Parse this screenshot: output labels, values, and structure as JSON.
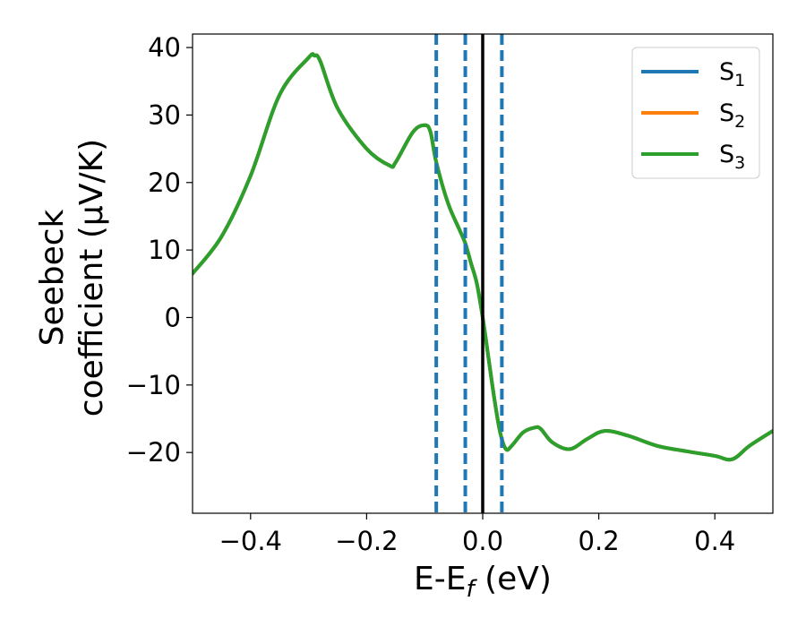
{
  "chart_data": {
    "type": "line",
    "xlabel": {
      "main": "E-E",
      "sub": "f",
      "tail": " (eV)"
    },
    "ylabel": {
      "line1": "Seebeck",
      "line2": "coefficient  (μV/K)"
    },
    "xlim": [
      -0.5,
      0.5
    ],
    "ylim": [
      -29,
      42
    ],
    "xticks": [
      -0.4,
      -0.2,
      0.0,
      0.2,
      0.4
    ],
    "xtick_labels": [
      "−0.4",
      "−0.2",
      "0.0",
      "0.2",
      "0.4"
    ],
    "yticks": [
      -20,
      -10,
      0,
      10,
      20,
      30,
      40
    ],
    "ytick_labels": [
      "−20",
      "−10",
      "0",
      "10",
      "20",
      "30",
      "40"
    ],
    "grid": false,
    "legend_position": "top-right",
    "series": [
      {
        "name": "S",
        "sub": "1",
        "color": "#1f77b4",
        "x": [
          -0.5,
          -0.45,
          -0.4,
          -0.35,
          -0.3,
          -0.29,
          -0.28,
          -0.25,
          -0.2,
          -0.16,
          -0.15,
          -0.12,
          -0.1,
          -0.09,
          -0.08,
          -0.06,
          -0.04,
          -0.03,
          -0.02,
          -0.01,
          0.0,
          0.01,
          0.02,
          0.03,
          0.04,
          0.05,
          0.07,
          0.09,
          0.1,
          0.12,
          0.15,
          0.18,
          0.21,
          0.25,
          0.3,
          0.35,
          0.4,
          0.43,
          0.46,
          0.5
        ],
        "y": [
          6.5,
          12,
          21,
          33,
          38.5,
          38.8,
          38,
          31,
          25,
          22.5,
          23,
          27.5,
          28.5,
          27.5,
          23,
          17,
          13,
          11,
          8,
          5,
          0,
          -6,
          -12,
          -17,
          -19.5,
          -19,
          -17,
          -16.3,
          -16.5,
          -18.5,
          -19.5,
          -18,
          -16.8,
          -17.5,
          -19,
          -19.8,
          -20.5,
          -21,
          -19,
          -16.8
        ]
      },
      {
        "name": "S",
        "sub": "2",
        "color": "#ff7f0e",
        "x": [
          -0.5,
          -0.45,
          -0.4,
          -0.35,
          -0.3,
          -0.29,
          -0.28,
          -0.25,
          -0.2,
          -0.16,
          -0.15,
          -0.12,
          -0.1,
          -0.09,
          -0.08,
          -0.06,
          -0.04,
          -0.03,
          -0.02,
          -0.01,
          0.0,
          0.01,
          0.02,
          0.03,
          0.04,
          0.05,
          0.07,
          0.09,
          0.1,
          0.12,
          0.15,
          0.18,
          0.21,
          0.25,
          0.3,
          0.35,
          0.4,
          0.43,
          0.46,
          0.5
        ],
        "y": [
          6.5,
          12,
          21,
          33,
          38.5,
          38.8,
          38,
          31,
          25,
          22.5,
          23,
          27.5,
          28.5,
          27.5,
          23,
          17,
          13,
          11,
          8,
          5,
          0,
          -6,
          -12,
          -17,
          -19.5,
          -19,
          -17,
          -16.3,
          -16.5,
          -18.5,
          -19.5,
          -18,
          -16.8,
          -17.5,
          -19,
          -19.8,
          -20.5,
          -21,
          -19,
          -16.8
        ]
      },
      {
        "name": "S",
        "sub": "3",
        "color": "#2ca02c",
        "x": [
          -0.5,
          -0.45,
          -0.4,
          -0.35,
          -0.3,
          -0.29,
          -0.28,
          -0.25,
          -0.2,
          -0.16,
          -0.15,
          -0.12,
          -0.1,
          -0.09,
          -0.08,
          -0.06,
          -0.04,
          -0.03,
          -0.02,
          -0.01,
          0.0,
          0.01,
          0.02,
          0.03,
          0.04,
          0.05,
          0.07,
          0.09,
          0.1,
          0.12,
          0.15,
          0.18,
          0.21,
          0.25,
          0.3,
          0.35,
          0.4,
          0.43,
          0.46,
          0.5
        ],
        "y": [
          6.5,
          12,
          21,
          33,
          38.5,
          38.8,
          38,
          31,
          25,
          22.5,
          23,
          27.5,
          28.5,
          27.5,
          23,
          17,
          13,
          11,
          8,
          5,
          0,
          -6,
          -12,
          -17,
          -19.5,
          -19,
          -17,
          -16.3,
          -16.5,
          -18.5,
          -19.5,
          -18,
          -16.8,
          -17.5,
          -19,
          -19.8,
          -20.5,
          -21,
          -19,
          -16.8
        ]
      }
    ],
    "vertical_lines": [
      {
        "x": -0.08,
        "style": "dashed",
        "color": "#1f77b4"
      },
      {
        "x": -0.03,
        "style": "dashed",
        "color": "#1f77b4"
      },
      {
        "x": 0.0,
        "style": "solid",
        "color": "#000000"
      },
      {
        "x": 0.033,
        "style": "dashed",
        "color": "#1f77b4"
      }
    ]
  }
}
